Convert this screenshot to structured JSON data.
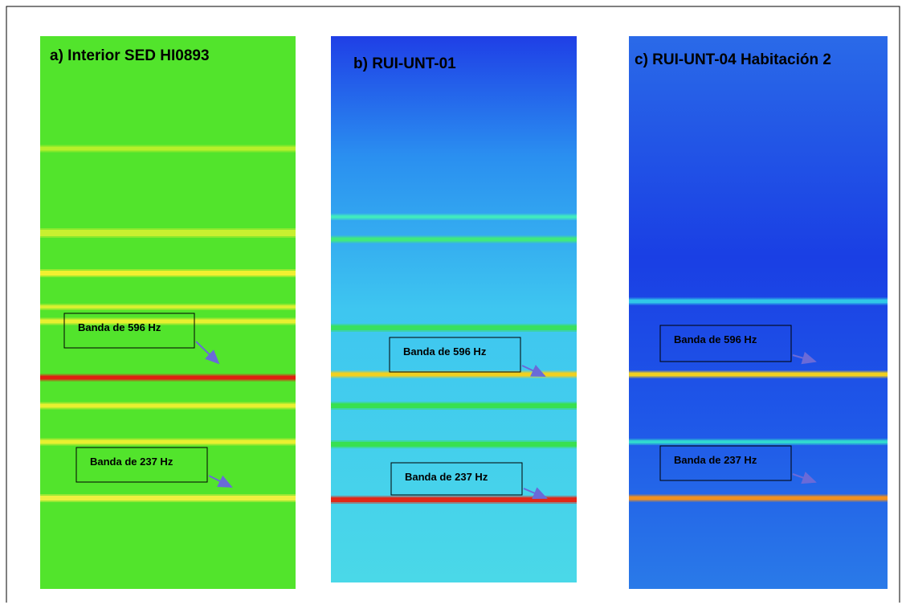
{
  "panels": [
    {
      "title": "a) Interior SED HI0893",
      "annotations": [
        "Banda de 596 Hz",
        "Banda de 237 Hz"
      ]
    },
    {
      "title": "b) RUI-UNT-01",
      "annotations": [
        "Banda de 596 Hz",
        "Banda de 237 Hz"
      ]
    },
    {
      "title": "c) RUI-UNT-04 Habitación 2",
      "annotations": [
        "Banda de 596 Hz",
        "Banda de 237 Hz"
      ]
    }
  ]
}
